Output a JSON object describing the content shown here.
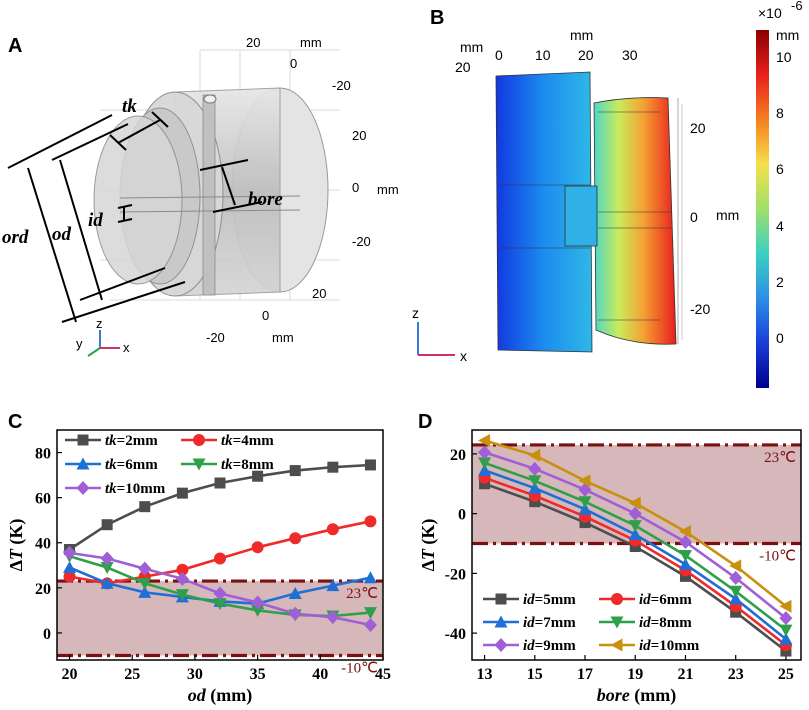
{
  "panels": {
    "A": {
      "letter": "A",
      "dims": {
        "tk": "tk",
        "bore": "bore",
        "id": "id",
        "od": "od",
        "ord": "ord"
      },
      "ticks_top": [
        "20",
        "0",
        "-20"
      ],
      "ticks_right": [
        "20",
        "0",
        "-20"
      ],
      "ticks_bottom": [
        "20",
        "0",
        "-20"
      ],
      "units": [
        "mm",
        "mm",
        "mm"
      ],
      "axes": {
        "z": "z",
        "y": "y",
        "x": "x"
      }
    },
    "B": {
      "letter": "B",
      "top_unit": "mm",
      "top_ticks": [
        "0",
        "10",
        "20",
        "30"
      ],
      "left_label": "mm",
      "left_tick": "20",
      "right_ticks": [
        "20",
        "0",
        "-20"
      ],
      "right_unit": "mm",
      "axes": {
        "z": "z",
        "x": "x"
      },
      "colorbar": {
        "exponent_base": "×10",
        "exponent": "-6",
        "unit": "mm",
        "ticks": [
          "10",
          "8",
          "6",
          "4",
          "2",
          "0"
        ],
        "colors": [
          "#8b0000",
          "#e8201c",
          "#f57f20",
          "#f5e04a",
          "#9ee06d",
          "#3bd0c0",
          "#2d8fe6",
          "#1a3cd9",
          "#00008b"
        ]
      }
    }
  },
  "chart_data": [
    {
      "panel": "C",
      "type": "line",
      "xlabel": "od (mm)",
      "xlabel_italic": "od",
      "xlabel_rest": " (mm)",
      "ylabel": "ΔT (K)",
      "ylabel_delta": "Δ",
      "ylabel_T": "T",
      "ylabel_rest": " (K)",
      "xlim": [
        19,
        45
      ],
      "ylim": [
        -12,
        90
      ],
      "xticks": [
        "20",
        "25",
        "30",
        "35",
        "40",
        "45"
      ],
      "yticks": [
        "0",
        "20",
        "40",
        "60",
        "80"
      ],
      "band": {
        "low": -10,
        "high": 23,
        "color": "#c9a0a3",
        "label_high": "23℃",
        "label_low": "-10℃"
      },
      "x": [
        20,
        23,
        26,
        29,
        32,
        35,
        38,
        41,
        44
      ],
      "series": [
        {
          "name": "tk=2mm",
          "var": "tk",
          "rest": "=2mm",
          "color": "#4d4d4d",
          "marker": "square",
          "values": [
            37,
            48,
            56,
            62,
            66.5,
            69.5,
            72,
            73.5,
            74.5
          ]
        },
        {
          "name": "tk=4mm",
          "var": "tk",
          "rest": "=4mm",
          "color": "#ee2a2a",
          "marker": "circle",
          "values": [
            25,
            22,
            25,
            28,
            33,
            38,
            42,
            46,
            49.5
          ]
        },
        {
          "name": "tk=6mm",
          "var": "tk",
          "rest": "=6mm",
          "color": "#1f6fd6",
          "marker": "triangle-up",
          "values": [
            29,
            22,
            18,
            16,
            14,
            13,
            17.5,
            21,
            24.5
          ]
        },
        {
          "name": "tk=8mm",
          "var": "tk",
          "rest": "=8mm",
          "color": "#2ea04a",
          "marker": "triangle-down",
          "values": [
            34,
            29,
            22,
            17,
            13,
            10,
            8,
            7.5,
            9
          ]
        },
        {
          "name": "tk=10mm",
          "var": "tk",
          "rest": "=10mm",
          "color": "#a05fd6",
          "marker": "diamond",
          "values": [
            35.5,
            33,
            28.5,
            24,
            17.5,
            13.5,
            8.5,
            7,
            3.5
          ]
        }
      ]
    },
    {
      "panel": "D",
      "type": "line",
      "xlabel": "bore (mm)",
      "xlabel_italic": "bore",
      "xlabel_rest": " (mm)",
      "ylabel": "ΔT (K)",
      "ylabel_delta": "Δ",
      "ylabel_T": "T",
      "ylabel_rest": " (K)",
      "xlim": [
        12.5,
        25.6
      ],
      "ylim": [
        -49,
        28
      ],
      "xticks": [
        "13",
        "15",
        "17",
        "19",
        "21",
        "23",
        "25"
      ],
      "yticks": [
        "20",
        "0",
        "-20",
        "-40"
      ],
      "band": {
        "low": -10,
        "high": 23,
        "color": "#c9a0a3",
        "label_high": "23℃",
        "label_low": "-10℃"
      },
      "x": [
        13,
        15,
        17,
        19,
        21,
        23,
        25
      ],
      "series": [
        {
          "name": "id=5mm",
          "var": "id",
          "rest": "=5mm",
          "color": "#4d4d4d",
          "marker": "square",
          "values": [
            10,
            4,
            -3,
            -11,
            -21,
            -33,
            -46
          ]
        },
        {
          "name": "id=6mm",
          "var": "id",
          "rest": "=6mm",
          "color": "#ee2a2a",
          "marker": "circle",
          "values": [
            12,
            6,
            -1,
            -9,
            -19,
            -31,
            -44
          ]
        },
        {
          "name": "id=7mm",
          "var": "id",
          "rest": "=7mm",
          "color": "#1f6fd6",
          "marker": "triangle-up",
          "values": [
            14.5,
            8.5,
            1.5,
            -7,
            -17,
            -28.5,
            -42
          ]
        },
        {
          "name": "id=8mm",
          "var": "id",
          "rest": "=8mm",
          "color": "#2ea04a",
          "marker": "triangle-down",
          "values": [
            17,
            11,
            4,
            -4,
            -14,
            -26,
            -39
          ]
        },
        {
          "name": "id=9mm",
          "var": "id",
          "rest": "=9mm",
          "color": "#a05fd6",
          "marker": "diamond",
          "values": [
            20.5,
            15,
            8,
            0,
            -9.5,
            -21.5,
            -35
          ]
        },
        {
          "name": "id=10mm",
          "var": "id",
          "rest": "=10mm",
          "color": "#c9900e",
          "marker": "triangle-left",
          "values": [
            24.5,
            19.5,
            11,
            3.5,
            -6,
            -17.5,
            -31
          ]
        }
      ]
    }
  ]
}
